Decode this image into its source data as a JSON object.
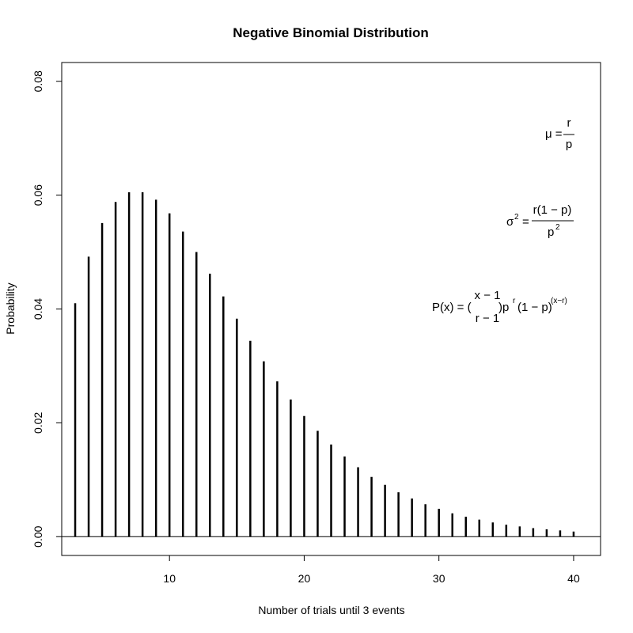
{
  "chart_data": {
    "type": "bar",
    "title": "Negative Binomial Distribution",
    "xlabel": "Number of trials until 3 events",
    "ylabel": "Probability",
    "xlim": [
      2,
      42
    ],
    "ylim": [
      -0.0033,
      0.0833
    ],
    "x_ticks": [
      10,
      20,
      30,
      40
    ],
    "x_tick_labels": [
      "10",
      "20",
      "30",
      "40"
    ],
    "y_ticks": [
      0.0,
      0.02,
      0.04,
      0.06,
      0.08
    ],
    "y_tick_labels": [
      "0.00",
      "0.02",
      "0.04",
      "0.06",
      "0.08"
    ],
    "grid": false,
    "legend": "none",
    "reference_line_y": 0,
    "x": [
      3,
      4,
      5,
      6,
      7,
      8,
      9,
      10,
      11,
      12,
      13,
      14,
      15,
      16,
      17,
      18,
      19,
      20,
      21,
      22,
      23,
      24,
      25,
      26,
      27,
      28,
      29,
      30,
      31,
      32,
      33,
      34,
      35,
      36,
      37,
      38,
      39,
      40
    ],
    "values": [
      0.041,
      0.0492,
      0.0551,
      0.0588,
      0.0605,
      0.0605,
      0.0592,
      0.0568,
      0.0536,
      0.05,
      0.0462,
      0.0422,
      0.0383,
      0.0344,
      0.0308,
      0.0273,
      0.0241,
      0.0212,
      0.0186,
      0.0162,
      0.0141,
      0.0122,
      0.0105,
      0.0091,
      0.0078,
      0.0067,
      0.0057,
      0.0049,
      0.0041,
      0.0035,
      0.003,
      0.0025,
      0.0021,
      0.0018,
      0.0015,
      0.0013,
      0.0011,
      0.0009
    ]
  },
  "annotations": {
    "mean": {
      "lhs": "μ =",
      "num": "r",
      "den": "p"
    },
    "variance": {
      "sigma": "σ",
      "sup": "2",
      "eq": "=",
      "num": "r(1 − p)",
      "den_base": "p",
      "den_sup": "2"
    },
    "pmf": {
      "lhs": "P(x) = (",
      "binom_top": "x − 1",
      "binom_bottom": "r − 1",
      "rhs_p": ")p",
      "sup_r": "r",
      "rhs_q": "(1 − p)",
      "sup_exp": "(x−r)"
    }
  }
}
